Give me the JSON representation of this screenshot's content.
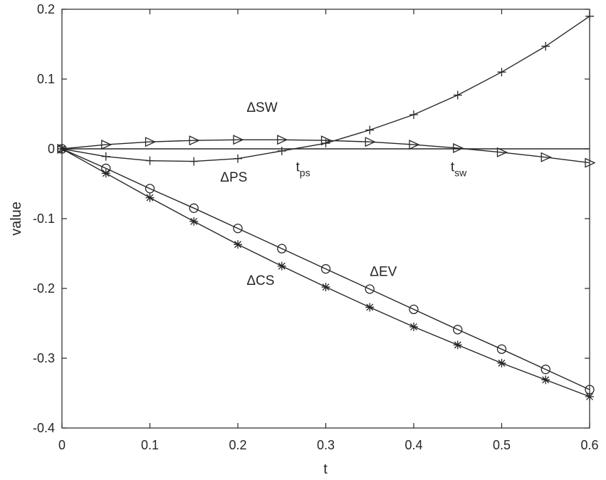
{
  "chart_data": {
    "type": "line",
    "xlabel": "t",
    "ylabel": "value",
    "xlim": [
      0,
      0.6
    ],
    "ylim": [
      -0.4,
      0.2
    ],
    "xticks": [
      0,
      0.1,
      0.2,
      0.3,
      0.4,
      0.5,
      0.6
    ],
    "xtick_labels": [
      "0",
      "0.1",
      "0.2",
      "0.3",
      "0.4",
      "0.5",
      "0.6"
    ],
    "yticks": [
      -0.4,
      -0.3,
      -0.2,
      -0.1,
      0,
      0.1,
      0.2
    ],
    "ytick_labels": [
      "-0.4",
      "-0.3",
      "-0.2",
      "-0.1",
      "0",
      "0.1",
      "0.2"
    ],
    "grid": false,
    "x": [
      0,
      0.05,
      0.1,
      0.15,
      0.2,
      0.25,
      0.3,
      0.35,
      0.4,
      0.45,
      0.5,
      0.55,
      0.6
    ],
    "series": [
      {
        "marker": "plus",
        "values": [
          0,
          -0.011,
          -0.017,
          -0.018,
          -0.014,
          -0.003,
          0.008,
          0.027,
          0.049,
          0.077,
          0.11,
          0.147,
          0.19
        ]
      },
      {
        "marker": "triangle-right",
        "values": [
          0,
          0.006,
          0.01,
          0.012,
          0.013,
          0.013,
          0.012,
          0.01,
          0.006,
          0.001,
          -0.005,
          -0.012,
          -0.02
        ]
      },
      {
        "marker": "circle",
        "values": [
          0,
          -0.028,
          -0.057,
          -0.085,
          -0.114,
          -0.143,
          -0.172,
          -0.201,
          -0.23,
          -0.259,
          -0.287,
          -0.316,
          -0.345
        ]
      },
      {
        "marker": "asterisk",
        "values": [
          0,
          -0.035,
          -0.07,
          -0.104,
          -0.137,
          -0.168,
          -0.198,
          -0.227,
          -0.255,
          -0.281,
          -0.307,
          -0.331,
          -0.355
        ]
      },
      {
        "marker": "none",
        "values": [
          0,
          0,
          0,
          0,
          0,
          0,
          0,
          0,
          0,
          0,
          0,
          0,
          0
        ]
      }
    ],
    "annotations": [
      {
        "id": "sw",
        "text": "ΔSW",
        "sub": "",
        "x": 0.21,
        "y": 0.053
      },
      {
        "id": "ps",
        "text": "ΔPS",
        "sub": "",
        "x": 0.18,
        "y": -0.047
      },
      {
        "id": "cs",
        "text": "ΔCS",
        "sub": "",
        "x": 0.21,
        "y": -0.195
      },
      {
        "id": "ev",
        "text": "ΔEV",
        "sub": "",
        "x": 0.35,
        "y": -0.182
      },
      {
        "id": "tps",
        "text": "t",
        "sub": "ps",
        "x": 0.266,
        "y": -0.032
      },
      {
        "id": "tsw",
        "text": "t",
        "sub": "sw",
        "x": 0.442,
        "y": -0.032
      }
    ]
  }
}
